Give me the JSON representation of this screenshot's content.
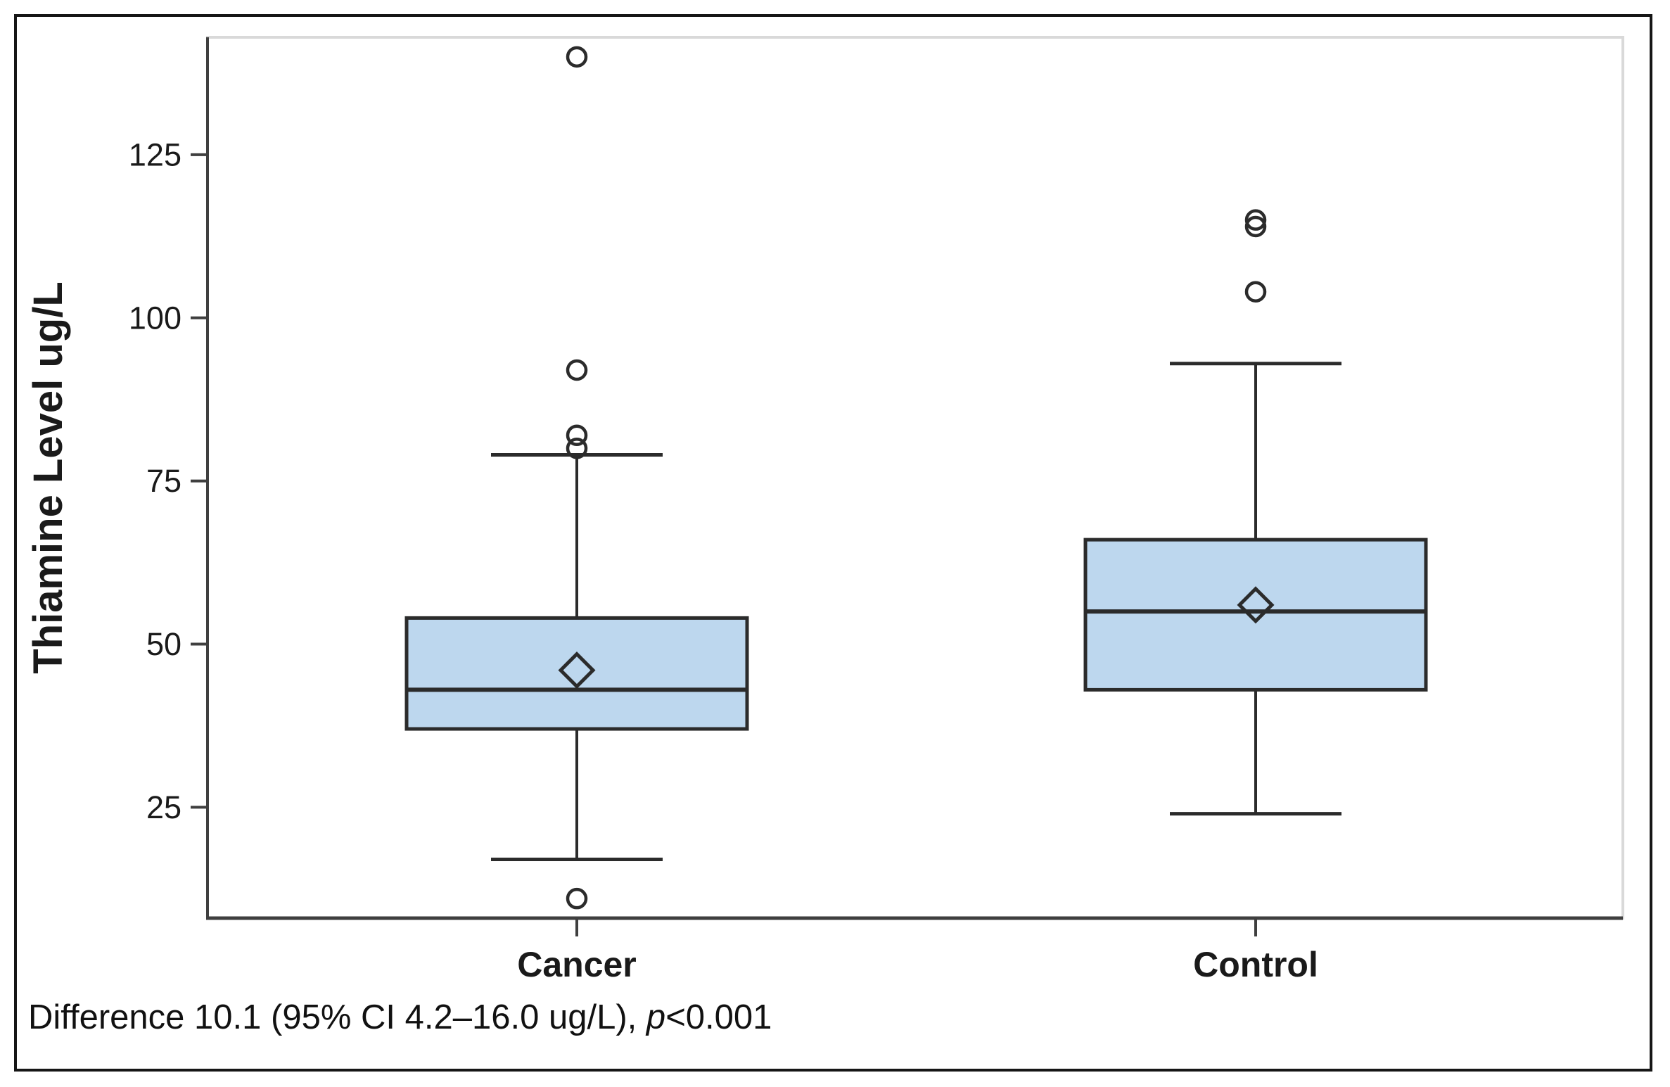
{
  "figure": {
    "caption": {
      "prefix": "Difference 10.1 (95% CI 4.2–16.0 ug/L), ",
      "italic": "p",
      "suffix": "<0.001"
    }
  },
  "chart_data": {
    "type": "boxplot",
    "title": "",
    "xlabel": "",
    "ylabel": "Thiamine Level ug/L",
    "categories": [
      "Cancer",
      "Control"
    ],
    "y_axis": {
      "min": 8,
      "max": 143,
      "ticks": [
        25,
        50,
        75,
        100,
        125
      ],
      "grid": false
    },
    "series": [
      {
        "name": "Cancer",
        "q1": 37,
        "median": 43,
        "q3": 54,
        "mean": 46,
        "whisker_low": 17,
        "whisker_high": 79,
        "outliers": [
          140,
          92,
          82,
          80,
          11
        ]
      },
      {
        "name": "Control",
        "q1": 43,
        "median": 55,
        "q3": 66,
        "mean": 56,
        "whisker_low": 24,
        "whisker_high": 93,
        "outliers": [
          115,
          114,
          104
        ]
      }
    ],
    "colors": {
      "box_fill": "#bdd7ee",
      "box_stroke": "#2b2b2b",
      "axis": "#3f3f3f",
      "frame": "#d9d9d9",
      "text": "#1a1a1a",
      "outer_border": "#161616"
    },
    "annotation": "Difference 10.1 (95% CI 4.2–16.0 ug/L), p<0.001",
    "legend": "none"
  }
}
